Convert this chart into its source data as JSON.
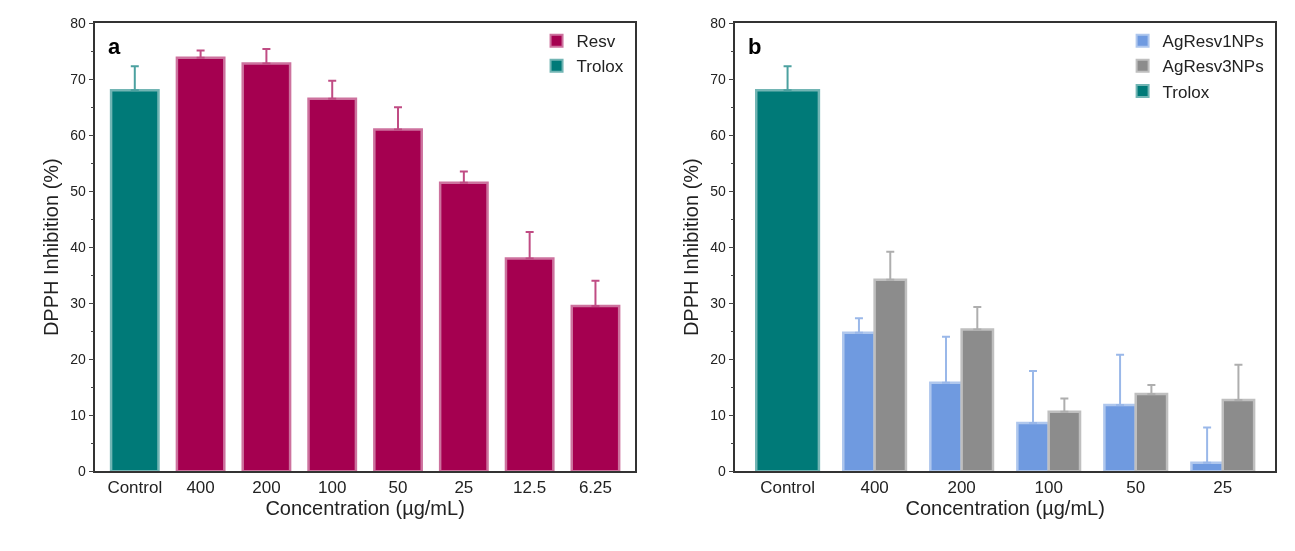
{
  "chart_data": [
    {
      "type": "bar",
      "categories": [
        "Control",
        "400",
        "200",
        "100",
        "50",
        "25",
        "12.5",
        "6.25"
      ],
      "xlabel": "Concentration (µg/mL)",
      "ylabel": "DPPH Inhibition (%)",
      "ylim": [
        0,
        80
      ],
      "yticks": [
        0,
        10,
        20,
        30,
        40,
        50,
        60,
        70,
        80
      ],
      "legend": "top right",
      "annotations": [
        "a"
      ],
      "series": [
        {
          "name": "Resv",
          "color": "#a50050",
          "values": [
            null,
            73.8,
            72.8,
            66.5,
            61.0,
            51.5,
            38.0,
            29.5
          ],
          "errors": [
            null,
            [
              73.8,
              75.1
            ],
            [
              72.8,
              75.4
            ],
            [
              66.5,
              69.7
            ],
            [
              61.0,
              65.0
            ],
            [
              51.5,
              53.5
            ],
            [
              38.0,
              42.7
            ],
            [
              29.5,
              34.0
            ]
          ]
        },
        {
          "name": "Trolox",
          "color": "#007a78",
          "values": [
            68.0,
            null,
            null,
            null,
            null,
            null,
            null,
            null
          ],
          "errors": [
            [
              68.0,
              72.3
            ],
            null,
            null,
            null,
            null,
            null,
            null,
            null
          ]
        }
      ]
    },
    {
      "type": "bar",
      "categories": [
        "Control",
        "400",
        "200",
        "100",
        "50",
        "25"
      ],
      "xlabel": "Concentration (µg/mL)",
      "ylabel": "DPPH Inhibition (%)",
      "ylim": [
        0,
        80
      ],
      "yticks": [
        0,
        10,
        20,
        30,
        40,
        50,
        60,
        70,
        80
      ],
      "legend": "top right",
      "annotations": [
        "b"
      ],
      "series": [
        {
          "name": "AgResv1NPs",
          "color": "#6f9ae0",
          "values": [
            null,
            24.7,
            15.8,
            8.6,
            11.8,
            1.5
          ],
          "errors": [
            null,
            [
              24.7,
              27.3
            ],
            [
              15.8,
              24.0
            ],
            [
              8.6,
              17.9
            ],
            [
              11.8,
              20.8
            ],
            [
              1.5,
              7.8
            ]
          ]
        },
        {
          "name": "AgResv3NPs",
          "color": "#8c8c8c",
          "values": [
            null,
            34.2,
            25.3,
            10.6,
            13.8,
            12.7
          ],
          "errors": [
            null,
            [
              34.2,
              39.2
            ],
            [
              25.3,
              29.3
            ],
            [
              10.6,
              13.0
            ],
            [
              13.8,
              15.4
            ],
            [
              12.7,
              19.0
            ]
          ]
        },
        {
          "name": "Trolox",
          "color": "#007a78",
          "values": [
            68.0,
            null,
            null,
            null,
            null,
            null
          ],
          "errors": [
            [
              68.0,
              72.3
            ],
            null,
            null,
            null,
            null,
            null
          ]
        }
      ]
    }
  ]
}
